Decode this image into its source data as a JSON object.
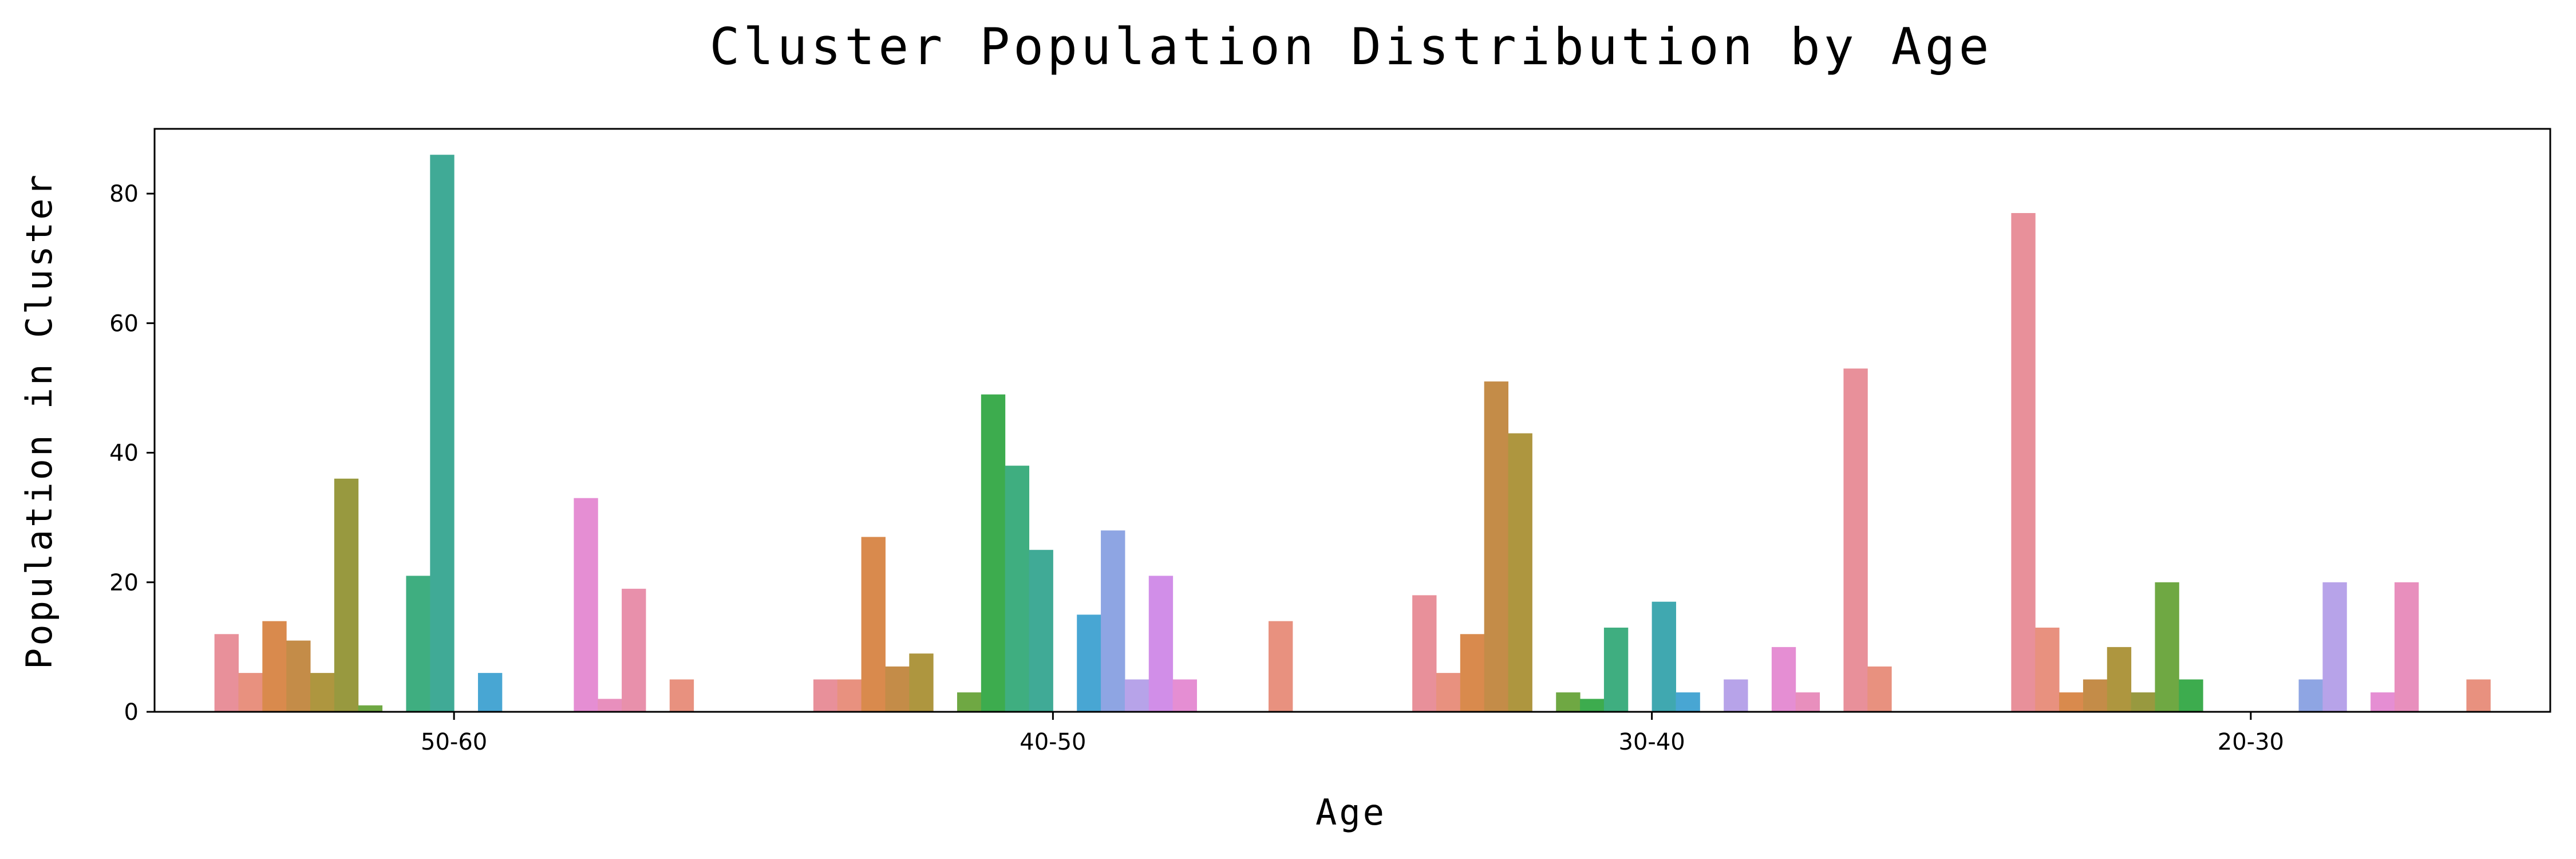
{
  "chart_data": {
    "type": "bar",
    "title": "Cluster Population Distribution by Age",
    "xlabel": "Age",
    "ylabel": "Population in Cluster",
    "categories": [
      "50-60",
      "40-50",
      "30-40",
      "20-30"
    ],
    "ylim": [
      0,
      90
    ],
    "yticks": [
      0,
      20,
      40,
      60,
      80
    ],
    "grid": false,
    "legend": "none",
    "palette": [
      "#e8909a",
      "#e8917f",
      "#d98a4d",
      "#c48c48",
      "#ae963f",
      "#98993f",
      "#6fa843",
      "#3dac4e",
      "#3fae80",
      "#40aa96",
      "#40a8b0",
      "#48a6d3",
      "#8ea5e3",
      "#b7a3e9",
      "#d18ee8",
      "#e58ed3",
      "#e88fbd",
      "#e890ab"
    ],
    "series": [
      {
        "values": [
          12,
          5,
          18,
          77
        ]
      },
      {
        "values": [
          6,
          5,
          6,
          13
        ]
      },
      {
        "values": [
          14,
          27,
          12,
          3
        ]
      },
      {
        "values": [
          11,
          7,
          51,
          5
        ]
      },
      {
        "values": [
          6,
          9,
          43,
          10
        ]
      },
      {
        "values": [
          36,
          0,
          0,
          3
        ]
      },
      {
        "values": [
          1,
          3,
          3,
          20
        ]
      },
      {
        "values": [
          0,
          49,
          2,
          5
        ]
      },
      {
        "values": [
          21,
          38,
          13,
          0
        ]
      },
      {
        "values": [
          86,
          25,
          0,
          0
        ]
      },
      {
        "values": [
          0,
          0,
          17,
          0
        ]
      },
      {
        "values": [
          6,
          15,
          3,
          0
        ]
      },
      {
        "values": [
          0,
          28,
          0,
          5
        ]
      },
      {
        "values": [
          0,
          5,
          5,
          20
        ]
      },
      {
        "values": [
          0,
          21,
          0,
          0
        ]
      },
      {
        "values": [
          33,
          5,
          10,
          3
        ]
      },
      {
        "values": [
          2,
          0,
          3,
          20
        ]
      },
      {
        "values": [
          19,
          0,
          0,
          0
        ]
      },
      {
        "values": [
          0,
          0,
          53,
          0
        ]
      },
      {
        "values": [
          5,
          14,
          7,
          5
        ]
      }
    ]
  }
}
